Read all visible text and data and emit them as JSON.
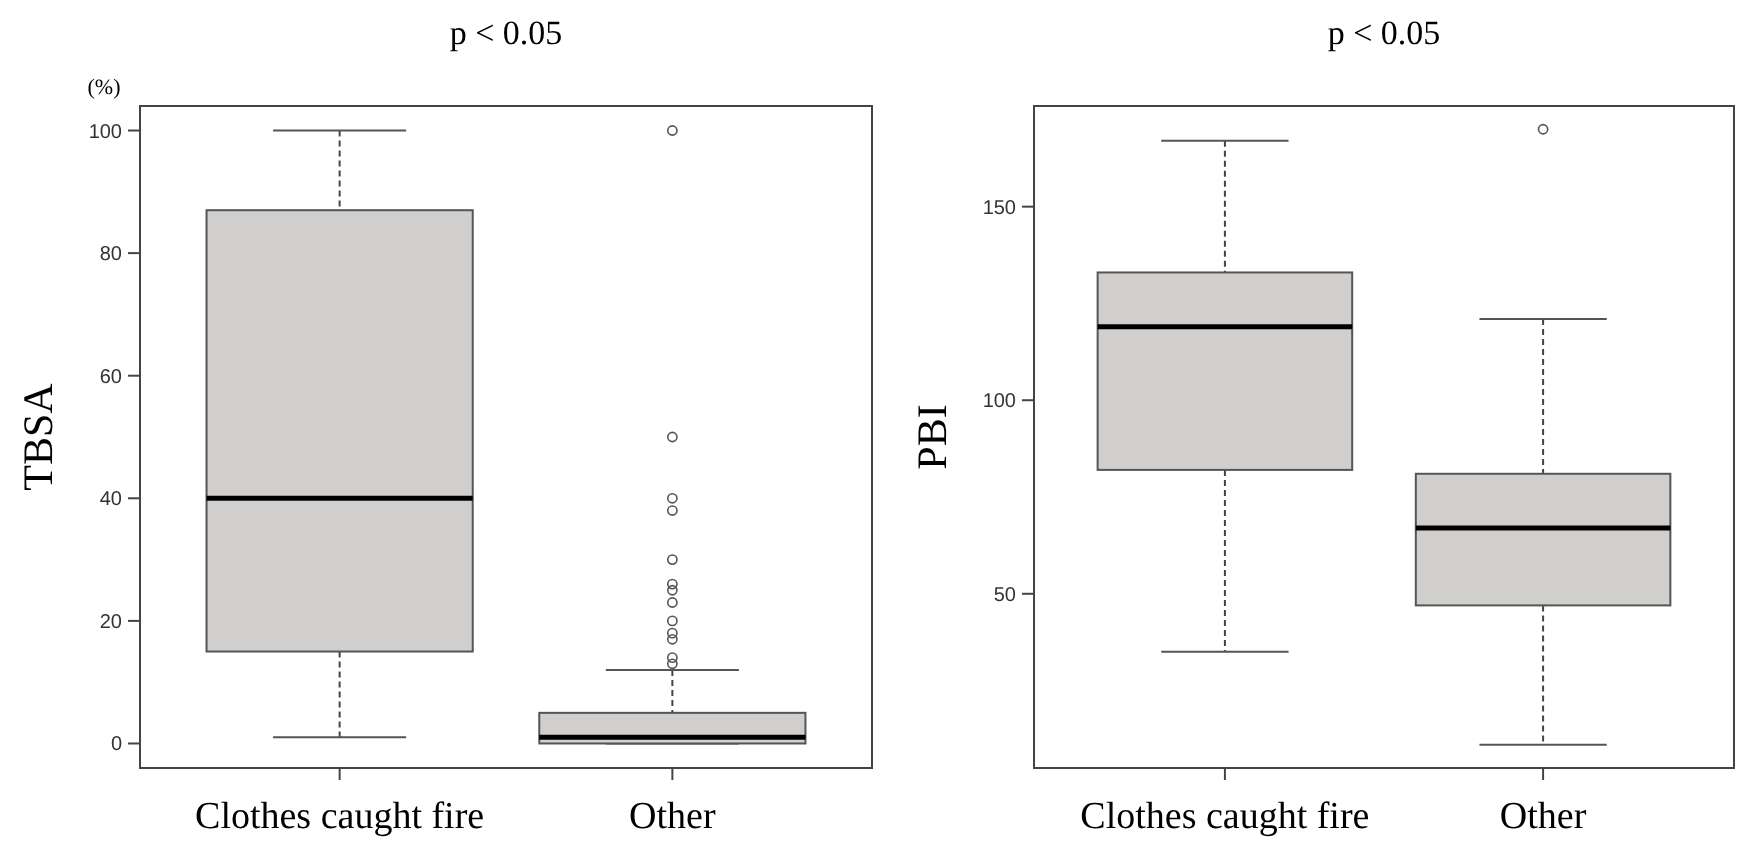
{
  "chart_data": [
    {
      "type": "box",
      "title": "p < 0.05",
      "ylabel": "TBSA",
      "annotations": [
        "(%)"
      ],
      "categories": [
        "Clothes caught fire",
        "Other"
      ],
      "color": "#d0cfcd",
      "ylim": [
        -4,
        104
      ],
      "yticks": [
        0,
        20,
        40,
        60,
        80,
        100
      ],
      "grid": false,
      "boxes": [
        {
          "low": 1,
          "q1": 15,
          "median": 40,
          "q3": 87,
          "high": 100
        },
        {
          "low": 0,
          "q1": 0,
          "median": 1,
          "q3": 5,
          "high": 12,
          "outliers": [
            100,
            50,
            40,
            38,
            30,
            26,
            25,
            23,
            20,
            18,
            17,
            14,
            13
          ]
        }
      ]
    },
    {
      "type": "box",
      "title": "p < 0.05",
      "ylabel": "PBI",
      "categories": [
        "Clothes caught fire",
        "Other"
      ],
      "color": "#d0cfcd",
      "ylim": [
        5,
        176
      ],
      "yticks": [
        50,
        100,
        150
      ],
      "grid": false,
      "boxes": [
        {
          "low": 35,
          "q1": 82,
          "median": 119,
          "q3": 133,
          "high": 167
        },
        {
          "low": 11,
          "q1": 47,
          "median": 67,
          "q3": 81,
          "high": 121,
          "outliers": [
            170
          ]
        }
      ]
    }
  ]
}
